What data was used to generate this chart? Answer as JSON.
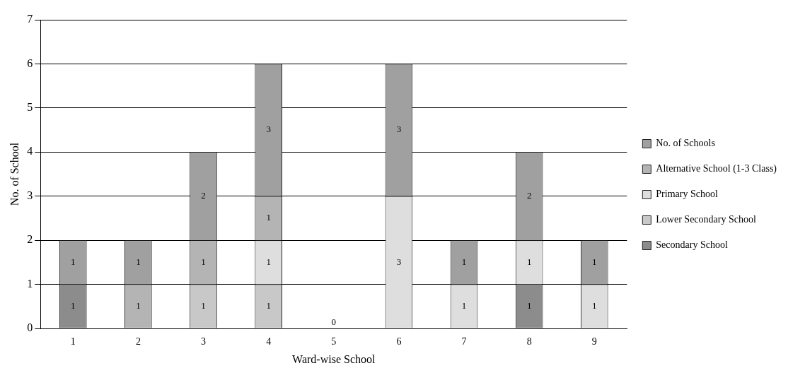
{
  "chart_data": {
    "type": "bar",
    "stacked": true,
    "xlabel": "Ward-wise School",
    "ylabel": "No. of School",
    "categories": [
      "1",
      "2",
      "3",
      "4",
      "5",
      "6",
      "7",
      "8",
      "9"
    ],
    "series": [
      {
        "name": "Secondary School",
        "color": "#8c8c8c",
        "values": [
          1,
          null,
          null,
          null,
          null,
          null,
          null,
          1,
          null
        ]
      },
      {
        "name": "Lower Secondary School",
        "color": "#c8c8c8",
        "values": [
          null,
          null,
          1,
          1,
          null,
          null,
          null,
          null,
          null
        ]
      },
      {
        "name": "Primary School",
        "color": "#dedede",
        "values": [
          null,
          null,
          null,
          1,
          null,
          3,
          1,
          1,
          1
        ]
      },
      {
        "name": "Alternative School (1-3 Class)",
        "color": "#b4b4b4",
        "values": [
          null,
          1,
          1,
          1,
          null,
          null,
          null,
          null,
          null
        ]
      },
      {
        "name": "No. of Schools",
        "color": "#a0a0a0",
        "values": [
          1,
          1,
          2,
          3,
          0,
          3,
          1,
          2,
          1
        ]
      }
    ],
    "ylim": [
      0,
      7
    ],
    "yticks": [
      0,
      1,
      2,
      3,
      4,
      5,
      6,
      7
    ],
    "grid": "y",
    "legend": "right",
    "data_labels": true
  }
}
